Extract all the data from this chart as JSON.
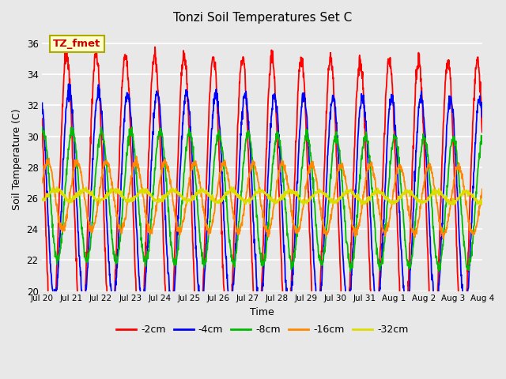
{
  "title": "Tonzi Soil Temperatures Set C",
  "xlabel": "Time",
  "ylabel": "Soil Temperature (C)",
  "ylim": [
    20,
    37
  ],
  "yticks": [
    20,
    22,
    24,
    26,
    28,
    30,
    32,
    34,
    36
  ],
  "bg_color": "#e8e8e8",
  "series_colors": [
    "#ff0000",
    "#0000ff",
    "#00bb00",
    "#ff8800",
    "#dddd00"
  ],
  "series_labels": [
    "-2cm",
    "-4cm",
    "-8cm",
    "-16cm",
    "-32cm"
  ],
  "n_days": 15,
  "samples_per_day": 96,
  "base_temp": 26.2,
  "amplitudes": [
    9.2,
    6.8,
    4.2,
    2.2,
    0.35
  ],
  "phase_offsets_hours": [
    0.0,
    2.0,
    4.5,
    8.5,
    15.0
  ],
  "trend_per_day": [
    -0.04,
    -0.04,
    -0.035,
    -0.025,
    -0.01
  ],
  "date_labels": [
    "Jul 20",
    "Jul 21",
    "Jul 22",
    "Jul 23",
    "Jul 24",
    "Jul 25",
    "Jul 26",
    "Jul 27",
    "Jul 28",
    "Jul 29",
    "Jul 30",
    "Jul 31",
    "Aug 1",
    "Aug 2",
    "Aug 3",
    "Aug 4"
  ],
  "annotation_text": "TZ_fmet"
}
